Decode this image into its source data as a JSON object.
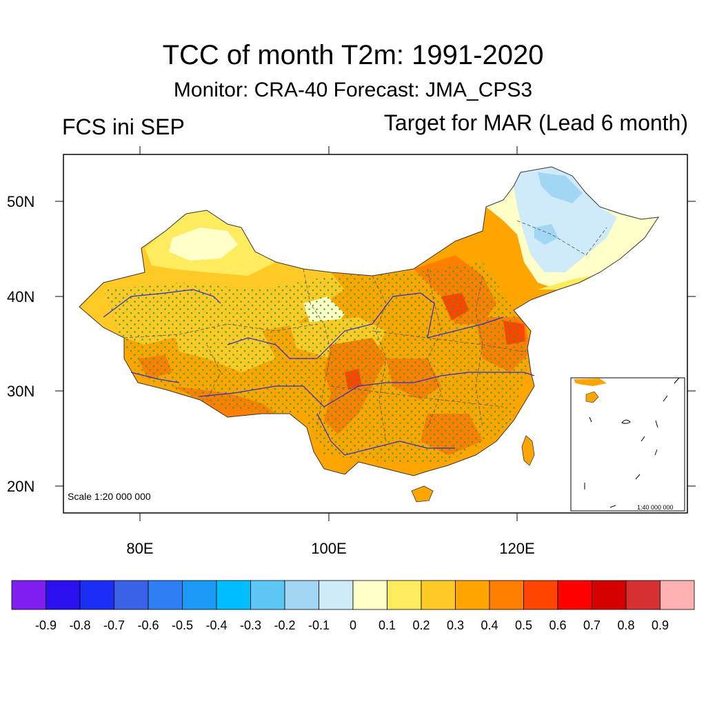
{
  "title": "TCC of month T2m: 1991-2020",
  "subtitle": "Monitor: CRA-40   Forecast: JMA_CPS3",
  "left_subtitle": "FCS ini SEP",
  "right_subtitle": "Target for MAR (Lead 6 month)",
  "scale_main": "Scale 1:20 000 000",
  "scale_inset": "1:40 000 000",
  "lat_labels": [
    "50N",
    "40N",
    "30N",
    "20N"
  ],
  "lon_labels": [
    "80E",
    "100E",
    "120E"
  ],
  "colorbar": {
    "colors": [
      "#7f1fef",
      "#2a10f0",
      "#1b2ef6",
      "#3a62e6",
      "#2e7ff4",
      "#1a9bf5",
      "#00bfff",
      "#5cc6f5",
      "#a1d7f4",
      "#cfebf9",
      "#ffffc8",
      "#ffeb5e",
      "#ffc926",
      "#ffa500",
      "#ff7f00",
      "#ff4500",
      "#ff0000",
      "#d70000",
      "#d63030",
      "#ffb0b0"
    ],
    "labels": [
      "-0.9",
      "-0.8",
      "-0.7",
      "-0.6",
      "-0.5",
      "-0.4",
      "-0.3",
      "-0.2",
      "-0.1",
      "0",
      "0.1",
      "0.2",
      "0.3",
      "0.4",
      "0.5",
      "0.6",
      "0.7",
      "0.8",
      "0.9"
    ]
  }
}
